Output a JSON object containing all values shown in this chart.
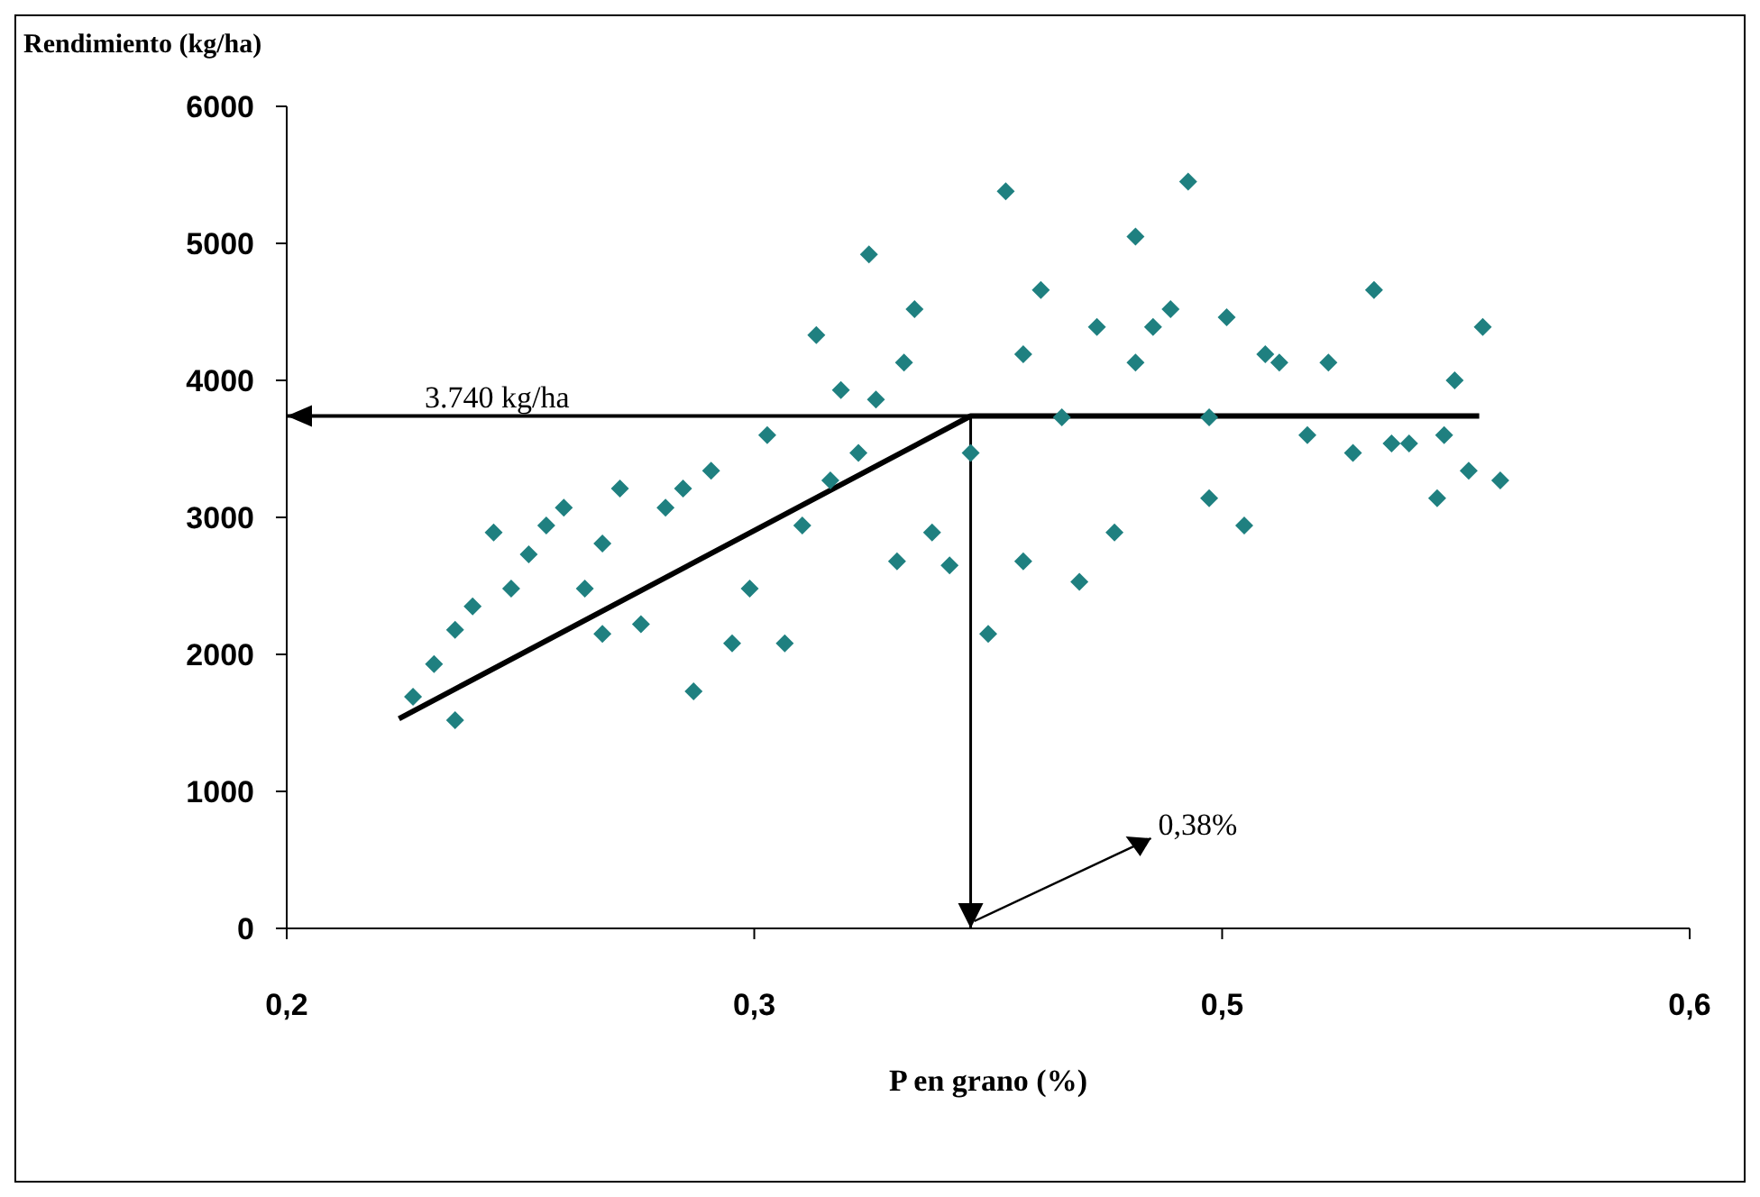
{
  "chart_data": {
    "type": "scatter",
    "ylabel": "Rendimiento (kg/ha)",
    "xlabel": "P en grano (%)",
    "xlim": [
      0.2,
      0.6
    ],
    "xticks": [
      {
        "value": 0.2,
        "label": "0,2"
      },
      {
        "value": 0.3333,
        "label": "0,3"
      },
      {
        "value": 0.4667,
        "label": "0,5"
      },
      {
        "value": 0.6,
        "label": "0,6"
      }
    ],
    "ylim": [
      0,
      6000
    ],
    "yticks": [
      0,
      1000,
      2000,
      3000,
      4000,
      5000,
      6000
    ],
    "marker": "diamond",
    "series": [
      {
        "color": "#1f8080",
        "x": [
          0.236,
          0.242,
          0.248,
          0.248,
          0.253,
          0.259,
          0.264,
          0.269,
          0.274,
          0.279,
          0.285,
          0.29,
          0.29,
          0.295,
          0.301,
          0.308,
          0.313,
          0.316,
          0.321,
          0.327,
          0.332,
          0.337,
          0.342,
          0.347,
          0.351,
          0.355,
          0.358,
          0.363,
          0.366,
          0.368,
          0.374,
          0.376,
          0.379,
          0.384,
          0.389,
          0.395,
          0.4,
          0.405,
          0.41,
          0.41,
          0.415,
          0.421,
          0.426,
          0.431,
          0.436,
          0.442,
          0.442,
          0.447,
          0.452,
          0.457,
          0.463,
          0.463,
          0.468,
          0.473,
          0.479,
          0.483,
          0.491,
          0.497,
          0.504,
          0.51,
          0.515,
          0.52,
          0.528,
          0.533,
          0.541,
          0.546,
          0.537,
          0.53
        ],
        "values": [
          1690,
          1930,
          2180,
          1520,
          2350,
          2890,
          2480,
          2730,
          2940,
          3070,
          2480,
          2150,
          2810,
          3210,
          2220,
          3070,
          3210,
          1730,
          3340,
          2080,
          2480,
          3600,
          2080,
          2940,
          4330,
          3270,
          3930,
          3470,
          4920,
          3860,
          2680,
          4130,
          4520,
          2890,
          2650,
          3470,
          2150,
          5380,
          4190,
          2680,
          4660,
          3730,
          2530,
          4390,
          2890,
          4130,
          5050,
          4390,
          4520,
          5450,
          3730,
          3140,
          4460,
          2940,
          4190,
          4130,
          3600,
          4130,
          3470,
          4660,
          3540,
          3540,
          3140,
          4000,
          4390,
          3270,
          3340,
          3600
        ]
      },
      {
        "type": "line",
        "color": "#000000",
        "marker": "none",
        "x": [
          0.232,
          0.395,
          0.54
        ],
        "values": [
          1530,
          3740,
          3740
        ]
      }
    ],
    "ref_lines": [
      {
        "axis": "y",
        "value": 3740,
        "color": "#000000"
      },
      {
        "axis": "x",
        "value": 0.395,
        "color": "#000000"
      }
    ],
    "annotations": [
      {
        "text": "3.740 kg/ha",
        "x": 0.26,
        "y": 3740
      },
      {
        "text": "0,38%",
        "x": 0.395,
        "y": 0
      }
    ]
  }
}
